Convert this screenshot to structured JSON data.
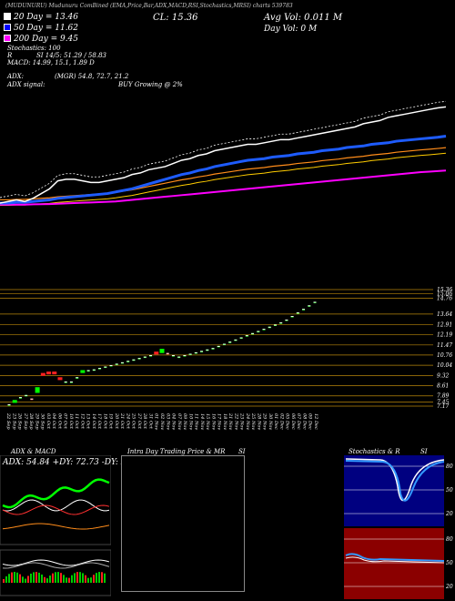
{
  "header": {
    "top_line": "(MUDUNURU) Mudunuru ComBined (EMA,Price,Bar,ADX,MACD,RSI,Stochastics,MRSI) charts 539783",
    "cl_label": "CL: 15.36",
    "avg_vol": "Avg Vol: 0.011 M",
    "day_vol": "Day Vol: 0 M"
  },
  "legend": [
    {
      "label": "20 Day = 13.46",
      "color": "#ffffff"
    },
    {
      "label": "50 Day = 11.62",
      "color": "#0000ff"
    },
    {
      "label": "200 Day = 9.45",
      "color": "#ff00ff"
    }
  ],
  "indicators": {
    "stochastics": "Stochastics: 100",
    "rsi_label": "R",
    "rsi": "SI 14/5: 51.29 / 58.83",
    "macd": "MACD: 14.99, 15.1, 1.89 D",
    "adx_label": "ADX:",
    "adx_values": "(MGR) 54.8, 72.7, 21.2",
    "adx_signal_label": "ADX signal:",
    "adx_signal": "BUY Growing @ 2%"
  },
  "panels": {
    "adx_title": "ADX & MACD",
    "adx_readout": "ADX: 54.84 +DY: 72.73 -DY: 21.21",
    "intraday_title": "Intra Day Trading Price & MR",
    "intraday_si": "SI",
    "stoch_title": "Stochastics & R",
    "stoch_si": "SI"
  },
  "price_axis": [
    "15.36",
    "15.06",
    "14.76",
    "13.64",
    "12.91",
    "12.19",
    "11.47",
    "10.76",
    "10.04",
    "9.32",
    "8.61",
    "7.89",
    "7.17",
    "7.45"
  ],
  "x_labels": [
    "22 Sep",
    "23 Sep",
    "26 Sep",
    "27 Sep",
    "28 Sep",
    "29 Sep",
    "30 Sep",
    "03 Oct",
    "04 Oct",
    "06 Oct",
    "07 Oct",
    "10 Oct",
    "11 Oct",
    "12 Oct",
    "13 Oct",
    "14 Oct",
    "17 Oct",
    "18 Oct",
    "19 Oct",
    "20 Oct",
    "21 Oct",
    "24 Oct",
    "25 Oct",
    "27 Oct",
    "28 Oct",
    "31 Oct",
    "01 Nov",
    "02 Nov",
    "03 Nov",
    "04 Nov",
    "07 Nov",
    "09 Nov",
    "10 Nov",
    "11 Nov",
    "14 Nov",
    "15 Nov",
    "16 Nov",
    "17 Nov",
    "18 Nov",
    "21 Nov",
    "22 Nov",
    "23 Nov",
    "24 Nov",
    "25 Nov",
    "28 Nov",
    "29 Nov",
    "30 Nov",
    "01 Dec",
    "02 Dec",
    "05 Dec",
    "06 Dec",
    "07 Dec",
    "08 Dec",
    "09 Dec",
    "12 Dec"
  ],
  "colors": {
    "ema_white": "#ffffff",
    "ema_blue": "#1e5cff",
    "ema_orange": "#ff8c1a",
    "ema_magenta": "#ff00ff",
    "ema_yellow": "#ffcc00",
    "grid": "#b8860b",
    "candle_up": "#00ff00",
    "candle_down": "#ff2020",
    "stoch_bg": "#000080",
    "rsi_bg": "#8b0000"
  },
  "stoch_axis": [
    "80",
    "50",
    "20"
  ],
  "rsi_axis": [
    "80",
    "50",
    "20"
  ],
  "chart_data": [
    {
      "type": "line",
      "title": "EMA",
      "series": [
        {
          "name": "20 Day = 13.46",
          "values": [
            7.4,
            7.5,
            7.6,
            7.5,
            7.7,
            8.0,
            8.3,
            8.8,
            8.9,
            8.9,
            8.8,
            8.7,
            8.7,
            8.8,
            8.9,
            9.0,
            9.2,
            9.3,
            9.5,
            9.6,
            9.7,
            9.9,
            10.1,
            10.2,
            10.4,
            10.5,
            10.7,
            10.8,
            10.9,
            11.0,
            11.1,
            11.1,
            11.2,
            11.3,
            11.4,
            11.4,
            11.5,
            11.6,
            11.7,
            11.8,
            11.9,
            12.0,
            12.1,
            12.2,
            12.4,
            12.5,
            12.6,
            12.8,
            12.9,
            13.0,
            13.1,
            13.2,
            13.3,
            13.4,
            13.46
          ]
        },
        {
          "name": "50 Day = 11.62",
          "values": [
            7.4,
            7.4,
            7.45,
            7.45,
            7.5,
            7.55,
            7.6,
            7.7,
            7.75,
            7.8,
            7.85,
            7.9,
            7.95,
            8.0,
            8.1,
            8.2,
            8.3,
            8.45,
            8.6,
            8.75,
            8.9,
            9.05,
            9.2,
            9.3,
            9.45,
            9.55,
            9.7,
            9.8,
            9.9,
            10.0,
            10.1,
            10.15,
            10.2,
            10.3,
            10.35,
            10.4,
            10.5,
            10.55,
            10.6,
            10.7,
            10.75,
            10.8,
            10.9,
            10.95,
            11.0,
            11.1,
            11.15,
            11.2,
            11.3,
            11.35,
            11.4,
            11.45,
            11.5,
            11.55,
            11.62
          ]
        },
        {
          "name": "200 Day = 9.45",
          "values": [
            7.3,
            7.3,
            7.3,
            7.3,
            7.32,
            7.33,
            7.34,
            7.36,
            7.38,
            7.4,
            7.42,
            7.44,
            7.46,
            7.48,
            7.5,
            7.55,
            7.6,
            7.65,
            7.7,
            7.75,
            7.8,
            7.85,
            7.9,
            7.95,
            8.0,
            8.05,
            8.1,
            8.15,
            8.2,
            8.25,
            8.3,
            8.35,
            8.4,
            8.45,
            8.5,
            8.55,
            8.6,
            8.65,
            8.7,
            8.75,
            8.8,
            8.85,
            8.9,
            8.95,
            9.0,
            9.05,
            9.1,
            9.15,
            9.2,
            9.25,
            9.3,
            9.35,
            9.38,
            9.42,
            9.45
          ]
        }
      ]
    },
    {
      "type": "bar",
      "title": "Price",
      "ylim": [
        7.17,
        15.36
      ],
      "candles": [
        {
          "x": "22 Sep",
          "o": 7.2,
          "c": 7.3,
          "up": true
        },
        {
          "x": "23 Sep",
          "o": 7.4,
          "c": 7.6,
          "up": true
        },
        {
          "x": "26 Sep",
          "o": 7.7,
          "c": 7.8,
          "up": true
        },
        {
          "x": "27 Sep",
          "o": 7.9,
          "c": 7.95,
          "up": true
        },
        {
          "x": "28 Sep",
          "o": 7.6,
          "c": 7.7,
          "up": false
        },
        {
          "x": "29 Sep",
          "o": 8.1,
          "c": 8.5,
          "up": true
        },
        {
          "x": "30 Sep",
          "o": 9.3,
          "c": 9.5,
          "up": false
        },
        {
          "x": "03 Oct",
          "o": 9.4,
          "c": 9.6,
          "up": false
        },
        {
          "x": "04 Oct",
          "o": 9.4,
          "c": 9.6,
          "up": false
        },
        {
          "x": "06 Oct",
          "o": 9.0,
          "c": 9.2,
          "up": false
        },
        {
          "x": "07 Oct",
          "o": 8.8,
          "c": 8.9,
          "up": true
        },
        {
          "x": "10 Oct",
          "o": 8.8,
          "c": 8.9,
          "up": true
        },
        {
          "x": "11 Oct",
          "o": 9.1,
          "c": 9.2,
          "up": true
        },
        {
          "x": "12 Oct",
          "o": 9.5,
          "c": 9.7,
          "up": true
        },
        {
          "x": "13 Oct",
          "o": 9.6,
          "c": 9.7,
          "up": true
        },
        {
          "x": "14 Oct",
          "o": 9.7,
          "c": 9.75,
          "up": true
        },
        {
          "x": "17 Oct",
          "o": 9.8,
          "c": 9.85,
          "up": true
        },
        {
          "x": "18 Oct",
          "o": 9.9,
          "c": 9.95,
          "up": true
        },
        {
          "x": "19 Oct",
          "o": 10.0,
          "c": 10.05,
          "up": true
        },
        {
          "x": "20 Oct",
          "o": 10.1,
          "c": 10.15,
          "up": true
        },
        {
          "x": "21 Oct",
          "o": 10.2,
          "c": 10.25,
          "up": true
        },
        {
          "x": "24 Oct",
          "o": 10.3,
          "c": 10.35,
          "up": true
        },
        {
          "x": "25 Oct",
          "o": 10.4,
          "c": 10.45,
          "up": true
        },
        {
          "x": "27 Oct",
          "o": 10.5,
          "c": 10.55,
          "up": true
        },
        {
          "x": "28 Oct",
          "o": 10.6,
          "c": 10.65,
          "up": true
        },
        {
          "x": "31 Oct",
          "o": 10.7,
          "c": 10.75,
          "up": true
        },
        {
          "x": "01 Nov",
          "o": 10.8,
          "c": 11.0,
          "up": false
        },
        {
          "x": "02 Nov",
          "o": 10.9,
          "c": 11.2,
          "up": true
        },
        {
          "x": "03 Nov",
          "o": 10.8,
          "c": 10.9,
          "up": false
        },
        {
          "x": "04 Nov",
          "o": 10.7,
          "c": 10.75,
          "up": true
        },
        {
          "x": "07 Nov",
          "o": 10.6,
          "c": 10.65,
          "up": true
        },
        {
          "x": "09 Nov",
          "o": 10.7,
          "c": 10.75,
          "up": true
        },
        {
          "x": "10 Nov",
          "o": 10.8,
          "c": 10.85,
          "up": true
        },
        {
          "x": "11 Nov",
          "o": 10.9,
          "c": 10.95,
          "up": true
        },
        {
          "x": "14 Nov",
          "o": 11.0,
          "c": 11.05,
          "up": true
        },
        {
          "x": "15 Nov",
          "o": 11.1,
          "c": 11.15,
          "up": true
        },
        {
          "x": "16 Nov",
          "o": 11.2,
          "c": 11.25,
          "up": true
        },
        {
          "x": "17 Nov",
          "o": 11.35,
          "c": 11.4,
          "up": true
        },
        {
          "x": "18 Nov",
          "o": 11.5,
          "c": 11.55,
          "up": true
        },
        {
          "x": "21 Nov",
          "o": 11.65,
          "c": 11.7,
          "up": true
        },
        {
          "x": "22 Nov",
          "o": 11.8,
          "c": 11.85,
          "up": true
        },
        {
          "x": "23 Nov",
          "o": 11.95,
          "c": 12.0,
          "up": true
        },
        {
          "x": "24 Nov",
          "o": 12.1,
          "c": 12.15,
          "up": true
        },
        {
          "x": "25 Nov",
          "o": 12.25,
          "c": 12.3,
          "up": true
        },
        {
          "x": "28 Nov",
          "o": 12.4,
          "c": 12.45,
          "up": true
        },
        {
          "x": "29 Nov",
          "o": 12.55,
          "c": 12.6,
          "up": true
        },
        {
          "x": "30 Nov",
          "o": 12.7,
          "c": 12.75,
          "up": true
        },
        {
          "x": "01 Dec",
          "o": 12.85,
          "c": 12.9,
          "up": true
        },
        {
          "x": "02 Dec",
          "o": 13.0,
          "c": 13.05,
          "up": true
        },
        {
          "x": "05 Dec",
          "o": 13.2,
          "c": 13.25,
          "up": true
        },
        {
          "x": "06 Dec",
          "o": 13.45,
          "c": 13.5,
          "up": true
        },
        {
          "x": "07 Dec",
          "o": 13.7,
          "c": 13.75,
          "up": true
        },
        {
          "x": "08 Dec",
          "o": 13.95,
          "c": 14.0,
          "up": true
        },
        {
          "x": "09 Dec",
          "o": 14.2,
          "c": 14.25,
          "up": true
        },
        {
          "x": "12 Dec",
          "o": 14.45,
          "c": 14.5,
          "up": true
        }
      ]
    }
  ]
}
